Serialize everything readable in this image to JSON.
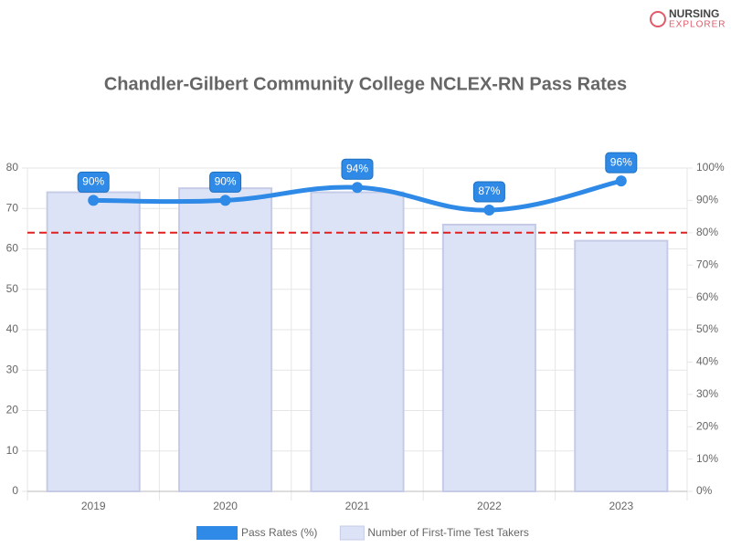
{
  "logo": {
    "line1": "NURSING",
    "line2": "EXPLORER"
  },
  "chart_data": {
    "type": "combo",
    "title": "Chandler-Gilbert Community College NCLEX-RN Pass Rates",
    "categories": [
      "2019",
      "2020",
      "2021",
      "2022",
      "2023"
    ],
    "series": [
      {
        "name": "Pass Rates (%)",
        "type": "line",
        "axis": "y2",
        "color": "#2e8ae6",
        "values": [
          90,
          90,
          94,
          87,
          96
        ],
        "value_labels": [
          "90%",
          "90%",
          "94%",
          "87%",
          "96%"
        ]
      },
      {
        "name": "Number of First-Time Test Takers",
        "type": "bar",
        "color": "#dde3f7",
        "border": "#c5cbe6",
        "values": [
          74,
          75,
          74,
          66,
          62
        ]
      }
    ],
    "ylim": [
      0,
      80
    ],
    "yticks": [
      0,
      10,
      20,
      30,
      40,
      50,
      60,
      70,
      80
    ],
    "y2lim": [
      0,
      100
    ],
    "y2ticks": [
      {
        "value": 0,
        "label": "0%"
      },
      {
        "value": 10,
        "label": "10%"
      },
      {
        "value": 20,
        "label": "20%"
      },
      {
        "value": 30,
        "label": "30%"
      },
      {
        "value": 40,
        "label": "40%"
      },
      {
        "value": 50,
        "label": "50%"
      },
      {
        "value": 60,
        "label": "60%"
      },
      {
        "value": 70,
        "label": "70%"
      },
      {
        "value": 80,
        "label": "80%"
      },
      {
        "value": 90,
        "label": "90%"
      },
      {
        "value": 100,
        "label": "100%"
      }
    ],
    "reference_line": {
      "value": 80,
      "axis": "y2",
      "color": "#e02020"
    },
    "grid": true
  }
}
